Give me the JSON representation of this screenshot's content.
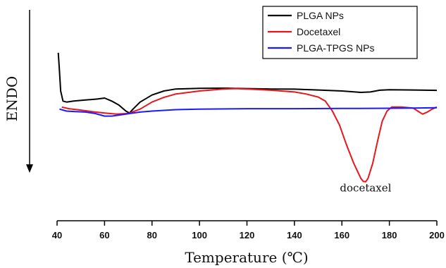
{
  "chart_data": {
    "type": "line",
    "title": "",
    "xlabel": "Temperature (℃)",
    "ylabel": "ENDO",
    "xlim": [
      40,
      200
    ],
    "x_ticks": [
      40,
      60,
      80,
      100,
      120,
      140,
      160,
      180,
      200
    ],
    "ylim": [
      0,
      1
    ],
    "y_tick_labels": false,
    "grid": false,
    "legend_position": "top-right",
    "series": [
      {
        "name": "PLGA NPs",
        "color": "#000000",
        "points": [
          [
            40.5,
            0.79
          ],
          [
            41,
            0.7
          ],
          [
            41.5,
            0.6
          ],
          [
            42.5,
            0.55
          ],
          [
            44,
            0.545
          ],
          [
            47,
            0.55
          ],
          [
            52,
            0.555
          ],
          [
            57,
            0.56
          ],
          [
            60,
            0.565
          ],
          [
            63,
            0.55
          ],
          [
            66,
            0.53
          ],
          [
            69,
            0.5
          ],
          [
            70.5,
            0.49
          ],
          [
            72,
            0.51
          ],
          [
            75,
            0.545
          ],
          [
            80,
            0.58
          ],
          [
            85,
            0.6
          ],
          [
            90,
            0.61
          ],
          [
            100,
            0.613
          ],
          [
            110,
            0.614
          ],
          [
            120,
            0.612
          ],
          [
            130,
            0.61
          ],
          [
            140,
            0.609
          ],
          [
            150,
            0.605
          ],
          [
            160,
            0.6
          ],
          [
            168,
            0.593
          ],
          [
            172,
            0.595
          ],
          [
            176,
            0.604
          ],
          [
            180,
            0.606
          ],
          [
            190,
            0.605
          ],
          [
            200,
            0.603
          ]
        ]
      },
      {
        "name": "Docetaxel",
        "color": "#e8161b",
        "points": [
          [
            42,
            0.52
          ],
          [
            45,
            0.512
          ],
          [
            50,
            0.505
          ],
          [
            55,
            0.497
          ],
          [
            60,
            0.49
          ],
          [
            65,
            0.485
          ],
          [
            70,
            0.488
          ],
          [
            75,
            0.51
          ],
          [
            80,
            0.545
          ],
          [
            85,
            0.568
          ],
          [
            90,
            0.585
          ],
          [
            100,
            0.6
          ],
          [
            110,
            0.61
          ],
          [
            115,
            0.612
          ],
          [
            120,
            0.61
          ],
          [
            130,
            0.604
          ],
          [
            140,
            0.595
          ],
          [
            145,
            0.585
          ],
          [
            150,
            0.57
          ],
          [
            153,
            0.55
          ],
          [
            156,
            0.5
          ],
          [
            159,
            0.43
          ],
          [
            162,
            0.33
          ],
          [
            165,
            0.24
          ],
          [
            167,
            0.19
          ],
          [
            168,
            0.165
          ],
          [
            169,
            0.15
          ],
          [
            170,
            0.148
          ],
          [
            171,
            0.165
          ],
          [
            173,
            0.24
          ],
          [
            175,
            0.35
          ],
          [
            177,
            0.45
          ],
          [
            179,
            0.5
          ],
          [
            181,
            0.52
          ],
          [
            185,
            0.52
          ],
          [
            190,
            0.515
          ],
          [
            192,
            0.5
          ],
          [
            194,
            0.485
          ],
          [
            196,
            0.495
          ],
          [
            198,
            0.51
          ],
          [
            200,
            0.52
          ]
        ]
      },
      {
        "name": "PLGA-TPGS NPs",
        "color": "#1a1aff",
        "points": [
          [
            41,
            0.51
          ],
          [
            44,
            0.5
          ],
          [
            47,
            0.498
          ],
          [
            52,
            0.495
          ],
          [
            56,
            0.488
          ],
          [
            60,
            0.475
          ],
          [
            63,
            0.475
          ],
          [
            66,
            0.48
          ],
          [
            70,
            0.487
          ],
          [
            75,
            0.495
          ],
          [
            80,
            0.5
          ],
          [
            90,
            0.507
          ],
          [
            100,
            0.51
          ],
          [
            120,
            0.512
          ],
          [
            140,
            0.512
          ],
          [
            160,
            0.513
          ],
          [
            180,
            0.514
          ],
          [
            190,
            0.515
          ],
          [
            200,
            0.517
          ]
        ]
      }
    ],
    "annotations": [
      {
        "text": "docetaxel",
        "x": 170,
        "y": 0.1
      }
    ]
  }
}
